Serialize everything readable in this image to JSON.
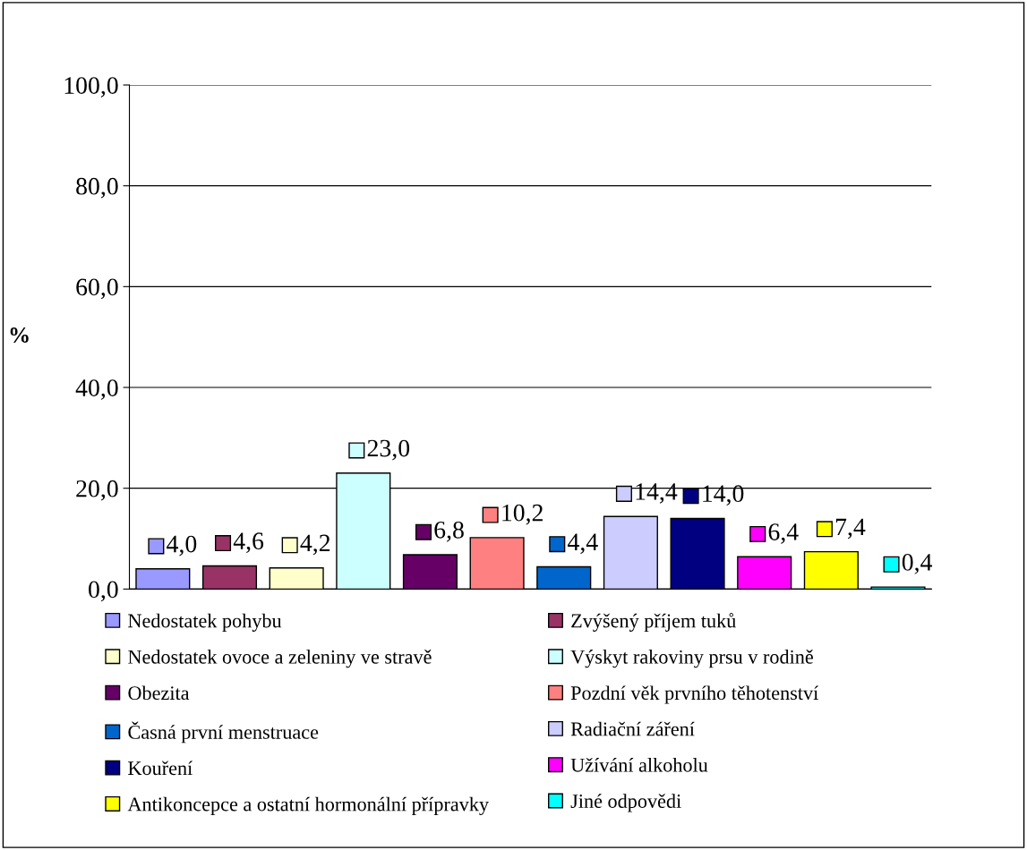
{
  "chart_data": {
    "type": "bar",
    "ylabel": "%",
    "categories": [
      null
    ],
    "series": [
      {
        "name": "Nedostatek pohybu",
        "color": "#9999ff",
        "values": [
          4.0
        ],
        "value_labels": [
          "4,0"
        ]
      },
      {
        "name": "Zvýšený příjem tuků",
        "color": "#993366",
        "values": [
          4.6
        ],
        "value_labels": [
          "4,6"
        ]
      },
      {
        "name": "Nedostatek ovoce a zeleniny ve stravě",
        "color": "#ffffcc",
        "values": [
          4.2
        ],
        "value_labels": [
          "4,2"
        ]
      },
      {
        "name": "Výskyt rakoviny prsu v rodině",
        "color": "#ccffff",
        "values": [
          23.0
        ],
        "value_labels": [
          "23,0"
        ]
      },
      {
        "name": "Obezita",
        "color": "#660066",
        "values": [
          6.8
        ],
        "value_labels": [
          "6,8"
        ]
      },
      {
        "name": "Pozdní věk prvního těhotenství",
        "color": "#ff8080",
        "values": [
          10.2
        ],
        "value_labels": [
          "10,2"
        ]
      },
      {
        "name": "Časná první menstruace",
        "color": "#0066cc",
        "values": [
          4.4
        ],
        "value_labels": [
          "4,4"
        ]
      },
      {
        "name": "Radiační záření",
        "color": "#ccccff",
        "values": [
          14.4
        ],
        "value_labels": [
          "14,4"
        ]
      },
      {
        "name": "Kouření",
        "color": "#000080",
        "values": [
          14.0
        ],
        "value_labels": [
          "14,0"
        ]
      },
      {
        "name": "Užívání alkoholu",
        "color": "#ff00ff",
        "values": [
          6.4
        ],
        "value_labels": [
          "6,4"
        ]
      },
      {
        "name": "Antikoncepce a ostatní hormonální přípravky",
        "color": "#ffff00",
        "values": [
          7.4
        ],
        "value_labels": [
          "7,4"
        ]
      },
      {
        "name": "Jiné odpovědi",
        "color": "#00ffff",
        "values": [
          0.4
        ],
        "value_labels": [
          "0,4"
        ]
      }
    ],
    "ylim": [
      0,
      100
    ],
    "yticks": [
      {
        "value": 0,
        "label": "0,0"
      },
      {
        "value": 20,
        "label": "20,0"
      },
      {
        "value": 40,
        "label": "40,0"
      },
      {
        "value": 60,
        "label": "60,0"
      },
      {
        "value": 80,
        "label": "80,0"
      },
      {
        "value": 100,
        "label": "100,0"
      }
    ],
    "grid": "y",
    "legend": "bottom",
    "tick_labels": "y"
  }
}
